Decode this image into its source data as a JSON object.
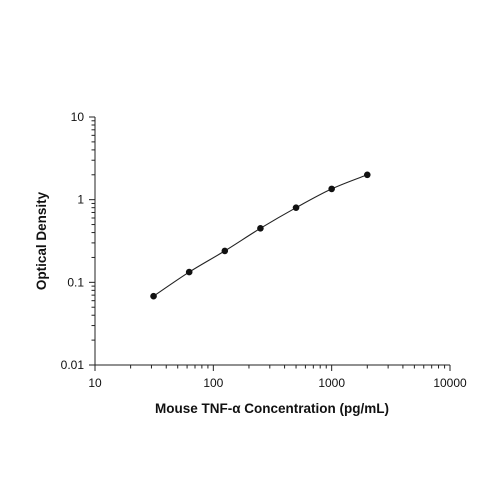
{
  "chart_data": {
    "type": "scatter",
    "xlabel": "Mouse TNF-α Concentration (pg/mL)",
    "ylabel": "Optical Density",
    "xscale": "log",
    "yscale": "log",
    "xlim": [
      10,
      10000
    ],
    "ylim": [
      0.01,
      10
    ],
    "x_tick_labels": [
      "10",
      "100",
      "1000",
      "10000"
    ],
    "y_tick_labels": [
      "0.01",
      "0.1",
      "1",
      "10"
    ],
    "x_tick_values": [
      10,
      100,
      1000,
      10000
    ],
    "y_tick_values": [
      0.01,
      0.1,
      1,
      10
    ],
    "grid": false,
    "fit_line": true,
    "points": [
      {
        "x": 31.25,
        "y": 0.068
      },
      {
        "x": 62.5,
        "y": 0.133
      },
      {
        "x": 125,
        "y": 0.24
      },
      {
        "x": 250,
        "y": 0.45
      },
      {
        "x": 500,
        "y": 0.8
      },
      {
        "x": 1000,
        "y": 1.35
      },
      {
        "x": 2000,
        "y": 2.0
      }
    ]
  }
}
